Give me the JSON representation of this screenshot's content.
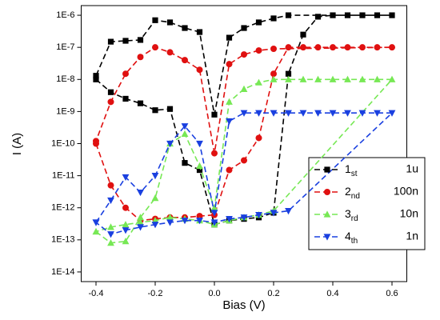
{
  "chart_data": {
    "type": "line",
    "log_y": true,
    "x_label": "Bias (V)",
    "y_label": "I (A)",
    "xlim": [
      -0.45,
      0.65
    ],
    "xticks": [
      -0.4,
      -0.2,
      {
        "value": 0,
        "label": "0.0"
      },
      0.2,
      0.4,
      0.6
    ],
    "ylim": [
      5e-15,
      2e-06
    ],
    "yticks": [
      {
        "value": 1e-14,
        "label": "1E-14"
      },
      {
        "value": 1e-13,
        "label": "1E-13"
      },
      {
        "value": 1e-12,
        "label": "1E-12"
      },
      {
        "value": 1e-11,
        "label": "1E-11"
      },
      {
        "value": 1e-10,
        "label": "1E-10"
      },
      {
        "value": 1e-09,
        "label": "1E-9"
      },
      {
        "value": 1e-08,
        "label": "1E-8"
      },
      {
        "value": 1e-07,
        "label": "1E-7"
      },
      {
        "value": 1e-06,
        "label": "1E-6"
      }
    ],
    "legend_position": "lower right",
    "series": [
      {
        "name": "1",
        "name_sub": "st",
        "name_tail": "1u",
        "color": "#000000",
        "marker": "square",
        "x": [
          -0.4,
          -0.35,
          -0.3,
          -0.25,
          -0.2,
          -0.15,
          -0.1,
          -0.05,
          0,
          0.05,
          0.1,
          0.15,
          0.2,
          0.25,
          0.3,
          0.35,
          0.4,
          0.45,
          0.5,
          0.55,
          0.6,
          0.25,
          0.2,
          0.15,
          0.1,
          0.05,
          0,
          -0.05,
          -0.1,
          -0.15,
          -0.2,
          -0.25,
          -0.3,
          -0.35,
          -0.4
        ],
        "values": [
          1e-08,
          4e-09,
          2.5e-09,
          1.8e-09,
          1.1e-09,
          1.2e-09,
          2.5e-11,
          1.5e-11,
          3e-13,
          4e-13,
          4.5e-13,
          5e-13,
          7e-13,
          1.5e-08,
          2.5e-07,
          9e-07,
          1e-06,
          1e-06,
          1e-06,
          1e-06,
          1e-06,
          1e-06,
          8e-07,
          6e-07,
          4e-07,
          2e-07,
          8e-10,
          3e-07,
          4e-07,
          6e-07,
          7e-07,
          1.7e-07,
          1.6e-07,
          1.5e-07,
          1.3e-08
        ]
      },
      {
        "name": "2",
        "name_sub": "nd",
        "name_tail": "100n",
        "color": "#e01010",
        "marker": "circle",
        "x": [
          -0.4,
          -0.35,
          -0.3,
          -0.25,
          -0.2,
          -0.15,
          -0.1,
          -0.05,
          0,
          0.05,
          0.1,
          0.15,
          0.2,
          0.25,
          0.3,
          0.35,
          0.4,
          0.45,
          0.5,
          0.55,
          0.6,
          0.2,
          0.15,
          0.1,
          0.05,
          0,
          -0.05,
          -0.1,
          -0.15,
          -0.2,
          -0.25,
          -0.3,
          -0.35,
          -0.4
        ],
        "values": [
          1e-10,
          5e-12,
          1e-12,
          4e-13,
          4.5e-13,
          5e-13,
          5e-13,
          5.5e-13,
          6e-13,
          1.5e-11,
          3e-11,
          1.5e-10,
          1.5e-08,
          1e-07,
          1e-07,
          1e-07,
          1e-07,
          1e-07,
          1e-07,
          1e-07,
          1e-07,
          9e-08,
          8e-08,
          6e-08,
          3e-08,
          5e-11,
          2e-08,
          4e-08,
          7e-08,
          1e-07,
          5e-08,
          1.5e-08,
          2e-09,
          1.2e-10
        ]
      },
      {
        "name": "3",
        "name_sub": "rd",
        "name_tail": "10n",
        "color": "#77e855",
        "marker": "triangle-up",
        "x": [
          -0.4,
          -0.35,
          -0.3,
          -0.25,
          -0.2,
          -0.15,
          -0.1,
          -0.05,
          0,
          0.05,
          0.1,
          0.15,
          0.2,
          0.25,
          0.3,
          0.35,
          0.4,
          0.45,
          0.5,
          0.55,
          0.6,
          0.2,
          0.15,
          0.1,
          0.05,
          0,
          -0.05,
          -0.1,
          -0.15,
          -0.2,
          -0.25,
          -0.3,
          -0.35,
          -0.4
        ],
        "values": [
          1.8e-13,
          8e-14,
          9e-14,
          5e-13,
          2e-12,
          1e-10,
          2e-10,
          2e-11,
          1e-12,
          2e-09,
          5e-09,
          8e-09,
          1e-08,
          1e-08,
          1e-08,
          1e-08,
          1e-08,
          1e-08,
          1e-08,
          1e-08,
          1e-08,
          8e-13,
          6e-13,
          5e-13,
          4e-13,
          3e-13,
          4e-13,
          4.5e-13,
          5e-13,
          4e-13,
          3.5e-13,
          3e-13,
          2.5e-13,
          1.8e-13
        ]
      },
      {
        "name": "4",
        "name_sub": "th",
        "name_tail": "1n",
        "color": "#1a40e0",
        "marker": "triangle-down",
        "x": [
          -0.4,
          -0.35,
          -0.3,
          -0.25,
          -0.2,
          -0.15,
          -0.1,
          -0.05,
          0,
          0.05,
          0.1,
          0.15,
          0.2,
          0.25,
          0.3,
          0.35,
          0.4,
          0.45,
          0.5,
          0.55,
          0.6,
          0.25,
          0.2,
          0.15,
          0.1,
          0.05,
          0,
          -0.05,
          -0.1,
          -0.15,
          -0.2,
          -0.25,
          -0.3,
          -0.35,
          -0.4
        ],
        "values": [
          3.5e-13,
          1.7e-12,
          9e-12,
          3e-12,
          1e-11,
          1e-10,
          3.5e-10,
          1e-10,
          7e-13,
          5e-10,
          9e-10,
          9e-10,
          9e-10,
          9e-10,
          9e-10,
          9e-10,
          9e-10,
          9e-10,
          9e-10,
          9e-10,
          9e-10,
          8e-13,
          7e-13,
          6e-13,
          5e-13,
          4.5e-13,
          3.5e-13,
          4e-13,
          4e-13,
          3.5e-13,
          3e-13,
          2.5e-13,
          2e-13,
          1.5e-13,
          3.5e-13
        ]
      }
    ]
  }
}
